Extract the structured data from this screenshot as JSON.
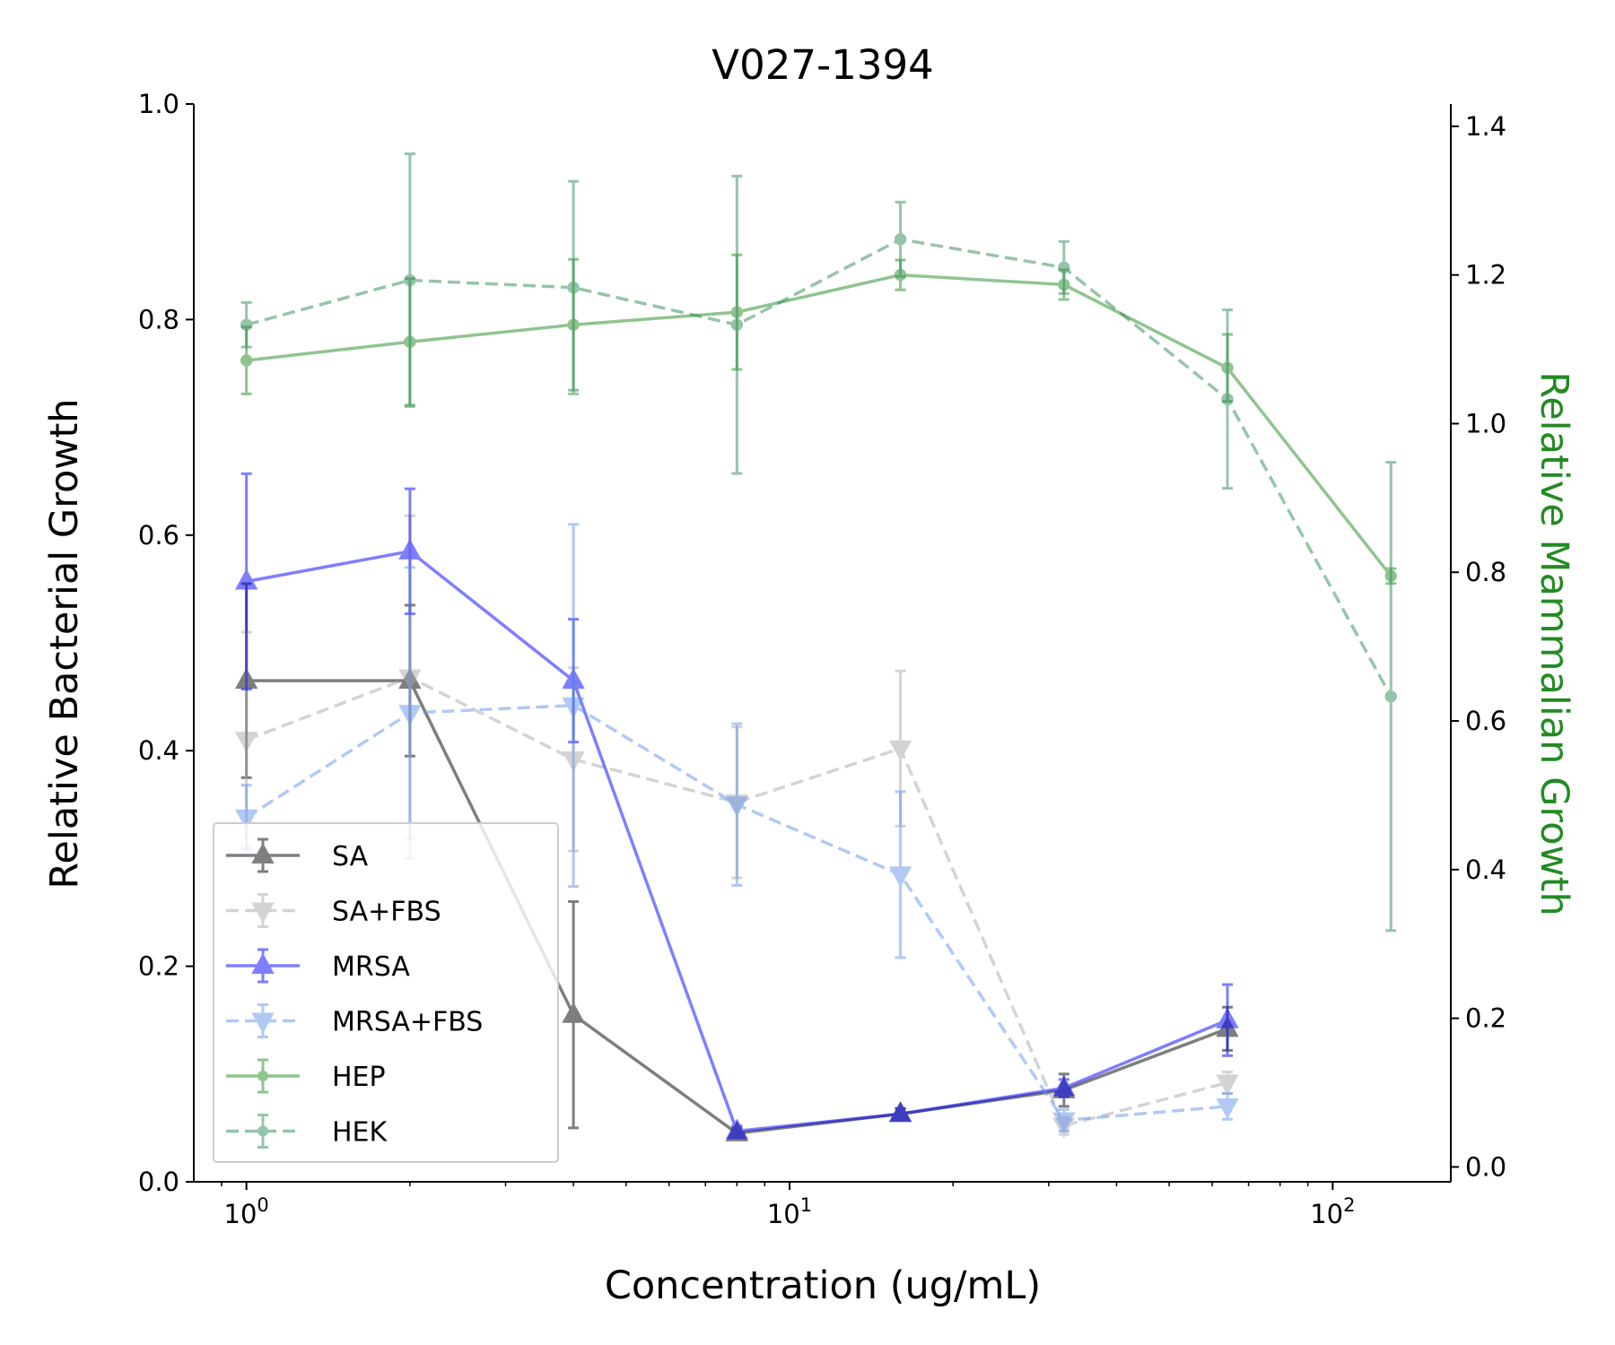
{
  "chart_data": {
    "type": "line",
    "title": "V027-1394",
    "xlabel": "Concentration (ug/mL)",
    "ylabel": "Relative Bacterial Growth",
    "y2label": "Relative Mammalian Growth",
    "y2label_color": "#228B22",
    "xscale": "log",
    "xlim": [
      0.8,
      165
    ],
    "ylim": [
      0,
      1.0
    ],
    "y2lim": [
      -0.02,
      1.43
    ],
    "x_ticks": [
      1,
      10,
      100
    ],
    "x_tick_labels": [
      {
        "base": "10",
        "exp": "0"
      },
      {
        "base": "10",
        "exp": "1"
      },
      {
        "base": "10",
        "exp": "2"
      }
    ],
    "y_ticks": [
      "0.0",
      "0.2",
      "0.4",
      "0.6",
      "0.8",
      "1.0"
    ],
    "y2_ticks": [
      "0.0",
      "0.2",
      "0.4",
      "0.6",
      "0.8",
      "1.0",
      "1.2",
      "1.4"
    ],
    "legend_position": "lower-left",
    "grid": false,
    "series": [
      {
        "name": "SA",
        "axis": "left",
        "color": "#000000",
        "opacity": 0.5,
        "dash": "solid",
        "marker": "triangle-up",
        "x": [
          1,
          2,
          4,
          8,
          16,
          32,
          64
        ],
        "y": [
          0.465,
          0.465,
          0.155,
          0.045,
          0.063,
          0.085,
          0.142
        ],
        "err": [
          0.09,
          0.07,
          0.105,
          0.005,
          0.005,
          0.015,
          0.02
        ]
      },
      {
        "name": "SA+FBS",
        "axis": "left",
        "color": "#a9a9a9",
        "opacity": 0.5,
        "dash": "dashed",
        "marker": "triangle-down",
        "x": [
          1,
          2,
          4,
          8,
          16,
          32,
          64
        ],
        "y": [
          0.41,
          0.468,
          0.392,
          0.352,
          0.402,
          0.052,
          0.092
        ],
        "err": [
          0.1,
          0.15,
          0.085,
          0.07,
          0.072,
          0.008,
          0.01
        ]
      },
      {
        "name": "MRSA",
        "axis": "left",
        "color": "#0000ff",
        "opacity": 0.5,
        "dash": "solid",
        "marker": "triangle-up",
        "x": [
          1,
          2,
          4,
          8,
          16,
          32,
          64
        ],
        "y": [
          0.557,
          0.585,
          0.465,
          0.047,
          0.063,
          0.087,
          0.15
        ],
        "err": [
          0.1,
          0.058,
          0.057,
          0.005,
          0.005,
          0.008,
          0.033
        ]
      },
      {
        "name": "MRSA+FBS",
        "axis": "left",
        "color": "#6495ed",
        "opacity": 0.5,
        "dash": "dashed",
        "marker": "triangle-down",
        "x": [
          1,
          2,
          4,
          8,
          16,
          32,
          64
        ],
        "y": [
          0.338,
          0.435,
          0.442,
          0.35,
          0.285,
          0.057,
          0.07
        ],
        "err": [
          0.03,
          0.135,
          0.168,
          0.075,
          0.077,
          0.01,
          0.012
        ]
      },
      {
        "name": "HEP",
        "axis": "right",
        "color": "#228b22",
        "opacity": 0.5,
        "dash": "solid",
        "marker": "dot",
        "x": [
          1,
          2,
          4,
          8,
          16,
          32,
          64,
          128
        ],
        "y": [
          1.085,
          1.11,
          1.133,
          1.15,
          1.2,
          1.187,
          1.075,
          0.795
        ],
        "err": [
          0.045,
          0.085,
          0.088,
          0.077,
          0.02,
          0.02,
          0.045,
          0.01
        ]
      },
      {
        "name": "HEK",
        "axis": "right",
        "color": "#2e8b57",
        "opacity": 0.5,
        "dash": "dashed",
        "marker": "dot",
        "x": [
          1,
          2,
          4,
          8,
          16,
          32,
          64,
          128
        ],
        "y": [
          1.133,
          1.193,
          1.183,
          1.133,
          1.248,
          1.21,
          1.033,
          0.633
        ],
        "err": [
          0.03,
          0.17,
          0.143,
          0.2,
          0.05,
          0.035,
          0.12,
          0.315
        ]
      }
    ]
  }
}
